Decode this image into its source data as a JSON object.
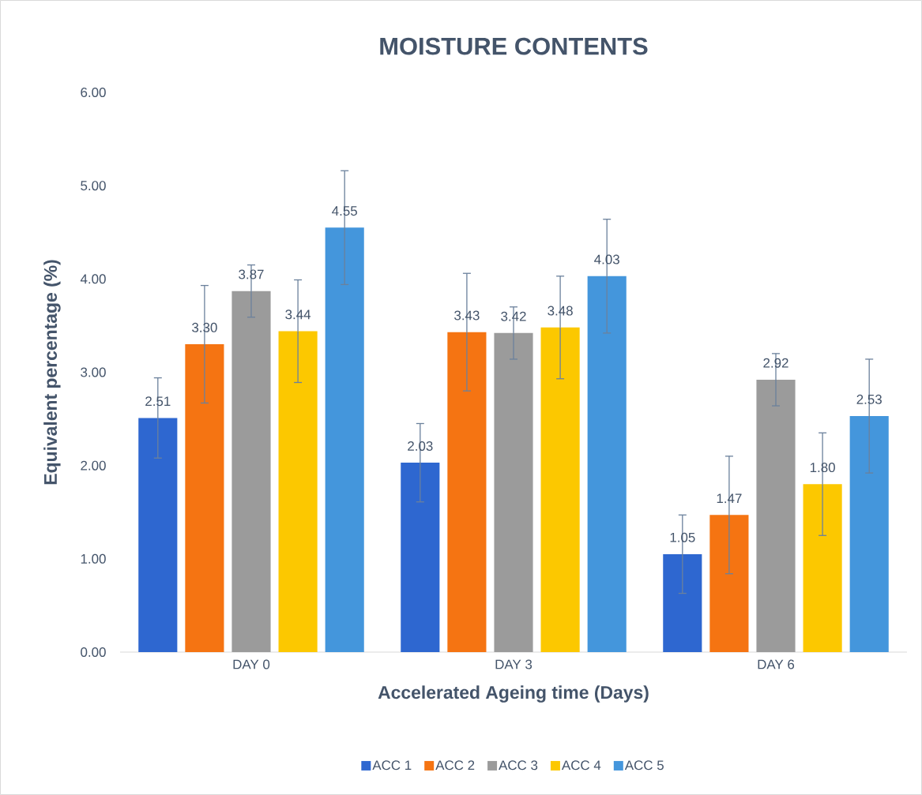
{
  "chart_data": {
    "type": "bar",
    "title": "MOISTURE CONTENTS",
    "xlabel": "Accelerated Ageing time (Days)",
    "ylabel": "Equivalent percentage (%)",
    "categories": [
      "DAY 0",
      "DAY 3",
      "DAY 6"
    ],
    "series": [
      {
        "name": "ACC 1",
        "color": "#2e67d0",
        "values": [
          2.51,
          2.03,
          1.05
        ],
        "errors": [
          0.43,
          0.42,
          0.42
        ],
        "value_labels": [
          "2.51",
          "2.03",
          "1.05"
        ]
      },
      {
        "name": "ACC 2",
        "color": "#f57412",
        "values": [
          3.3,
          3.43,
          1.47
        ],
        "errors": [
          0.63,
          0.63,
          0.63
        ],
        "value_labels": [
          "3.30",
          "3.43",
          "1.47"
        ]
      },
      {
        "name": "ACC 3",
        "color": "#9b9b9b",
        "values": [
          3.87,
          3.42,
          2.92
        ],
        "errors": [
          0.28,
          0.28,
          0.28
        ],
        "value_labels": [
          "3.87",
          "3.42",
          "2.92"
        ]
      },
      {
        "name": "ACC 4",
        "color": "#fcc800",
        "values": [
          3.44,
          3.48,
          1.8
        ],
        "errors": [
          0.55,
          0.55,
          0.55
        ],
        "value_labels": [
          "3.44",
          "3.48",
          "1.80"
        ]
      },
      {
        "name": "ACC 5",
        "color": "#4496dc",
        "values": [
          4.55,
          4.03,
          2.53
        ],
        "errors": [
          0.61,
          0.61,
          0.61
        ],
        "value_labels": [
          "4.55",
          "4.03",
          "2.53"
        ]
      }
    ],
    "ylim": [
      0,
      6
    ],
    "yticks": [
      {
        "value": 0,
        "label": "0.00"
      },
      {
        "value": 1,
        "label": "1.00"
      },
      {
        "value": 2,
        "label": "2.00"
      },
      {
        "value": 3,
        "label": "3.00"
      },
      {
        "value": 4,
        "label": "4.00"
      },
      {
        "value": 5,
        "label": "5.00"
      },
      {
        "value": 6,
        "label": "6.00"
      }
    ],
    "legend": "bottom"
  }
}
